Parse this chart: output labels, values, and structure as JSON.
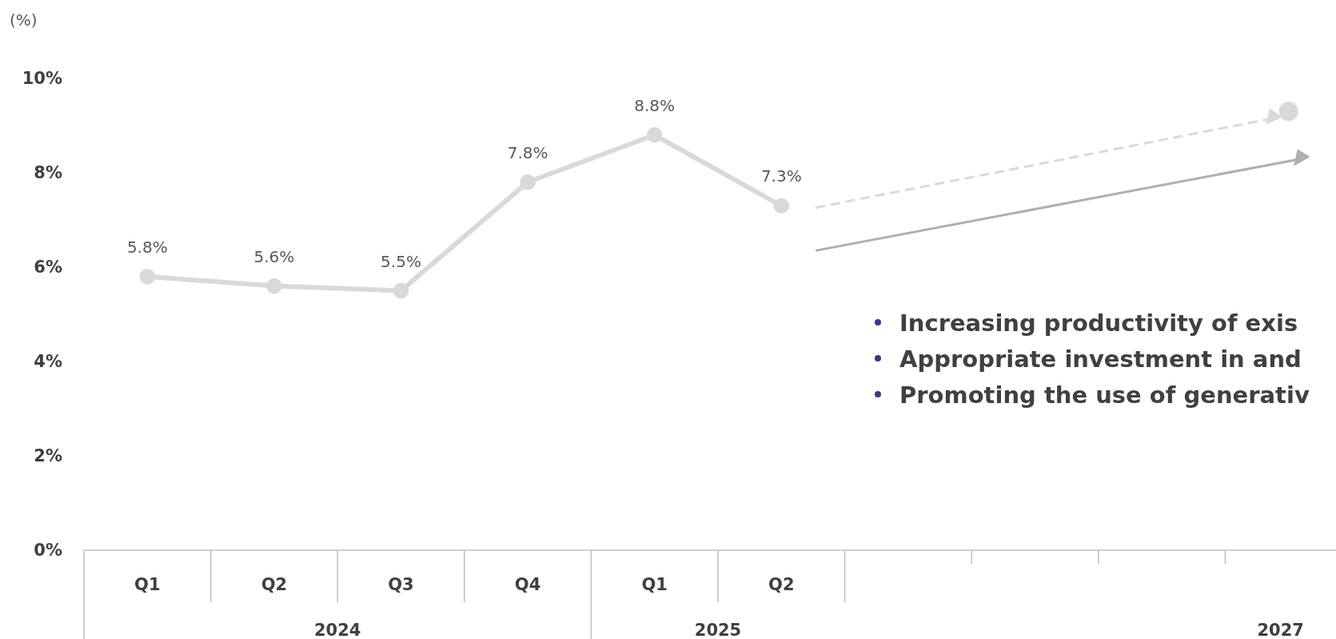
{
  "chart_data": {
    "type": "line",
    "ylabel": "(%)",
    "categories": [
      "Q1",
      "Q2",
      "Q3",
      "Q4",
      "Q1",
      "Q2",
      null,
      null,
      null,
      null
    ],
    "series": [
      {
        "color": "#d9d9d9",
        "values": [
          5.8,
          5.6,
          5.5,
          7.8,
          8.8,
          7.3,
          null,
          null,
          null,
          null
        ],
        "value_labels": [
          "5.8%",
          "5.6%",
          "5.5%",
          "7.8%",
          "8.8%",
          "7.3%",
          null,
          null,
          null,
          null
        ]
      },
      {
        "type": "scatter",
        "color": "#d9d9d9",
        "values": [
          null,
          null,
          null,
          null,
          null,
          null,
          null,
          null,
          null,
          9.3
        ]
      }
    ],
    "ylim": [
      0,
      10
    ],
    "yticks": [
      {
        "value": 0,
        "label": "0%"
      },
      {
        "value": 2,
        "label": "2%"
      },
      {
        "value": 4,
        "label": "4%"
      },
      {
        "value": 6,
        "label": "6%"
      },
      {
        "value": 8,
        "label": "8%"
      },
      {
        "value": 10,
        "label": "10%"
      }
    ],
    "marker": "circle",
    "annotations": [
      "2024",
      "2025",
      "2027",
      "Increasing productivity of exis",
      "Appropriate investment in and",
      "Promoting the use of generativ"
    ]
  }
}
